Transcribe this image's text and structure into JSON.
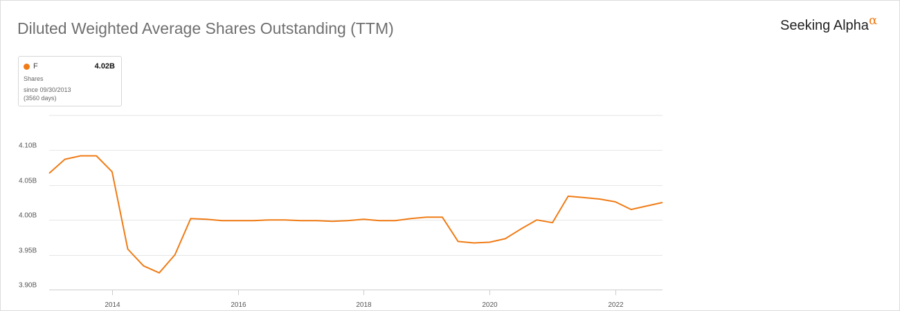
{
  "header": {
    "title": "Diluted Weighted Average Shares Outstanding (TTM)",
    "brand": "Seeking Alpha",
    "brand_mark": "α"
  },
  "legend": {
    "ticker": "F",
    "value": "4.02B",
    "metric": "Shares",
    "since": "since 09/30/2013",
    "days": "(3560 days)"
  },
  "colors": {
    "series": "#f07b14",
    "grid": "#e6e6e6",
    "brand_alpha": "#f07b14"
  },
  "chart_data": {
    "type": "line",
    "title": "Diluted Weighted Average Shares Outstanding (TTM)",
    "xlabel": "",
    "ylabel": "",
    "ylim": [
      3.9,
      4.15
    ],
    "xlim": [
      2013.0,
      2022.75
    ],
    "y_ticks": [
      3.9,
      3.95,
      4.0,
      4.05,
      4.1
    ],
    "y_tick_labels": [
      "3.90B",
      "3.95B",
      "4.00B",
      "4.05B",
      "4.10B"
    ],
    "x_ticks": [
      2014,
      2016,
      2018,
      2020,
      2022
    ],
    "x_tick_labels": [
      "2014",
      "2016",
      "2018",
      "2020",
      "2022"
    ],
    "grid": true,
    "legend_position": "top-left",
    "series": [
      {
        "name": "F",
        "x": [
          2013.0,
          2013.25,
          2013.5,
          2013.75,
          2014.0,
          2014.25,
          2014.5,
          2014.75,
          2015.0,
          2015.25,
          2015.5,
          2015.75,
          2016.0,
          2016.25,
          2016.5,
          2016.75,
          2017.0,
          2017.25,
          2017.5,
          2017.75,
          2018.0,
          2018.25,
          2018.5,
          2018.75,
          2019.0,
          2019.25,
          2019.5,
          2019.75,
          2020.0,
          2020.25,
          2020.5,
          2020.75,
          2021.0,
          2021.25,
          2021.5,
          2021.75,
          2022.0,
          2022.25,
          2022.5,
          2022.75
        ],
        "values": [
          4.067,
          4.087,
          4.092,
          4.092,
          4.069,
          3.958,
          3.934,
          3.924,
          3.95,
          4.002,
          4.001,
          3.999,
          3.999,
          3.999,
          4.0,
          4.0,
          3.999,
          3.999,
          3.998,
          3.999,
          4.001,
          3.999,
          3.999,
          4.002,
          4.004,
          4.004,
          3.969,
          3.967,
          3.968,
          3.973,
          3.987,
          4.0,
          3.996,
          4.034,
          4.032,
          4.03,
          4.026,
          4.015,
          4.02,
          4.025
        ]
      }
    ]
  }
}
